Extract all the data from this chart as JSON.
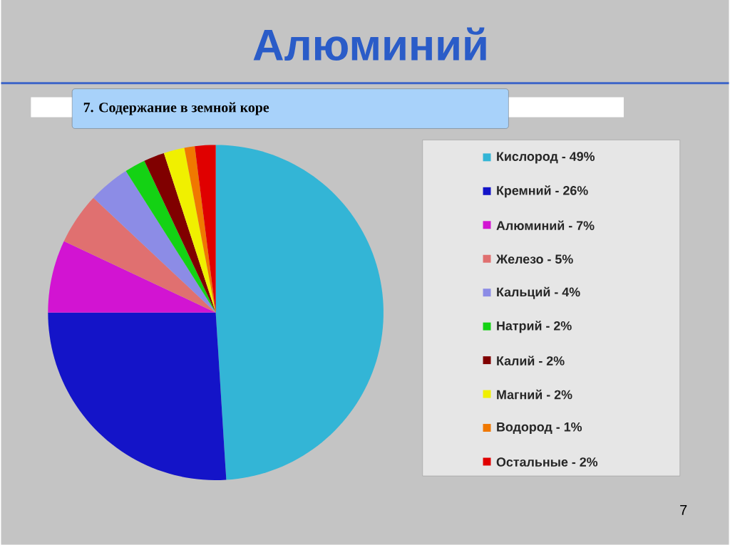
{
  "chart_data": {
    "type": "pie",
    "title": "Алюминий",
    "subtitle": "7. Содержание в земной коре",
    "categories": [
      "Кислород - 49%",
      "Кремний - 26%",
      "Алюминий - 7%",
      "Железо - 5%",
      "Кальций - 4%",
      "Натрий - 2%",
      "Калий - 2%",
      "Магний - 2%",
      "Водород - 1%",
      "Остальные - 2%"
    ],
    "values": [
      49,
      26,
      7,
      5,
      4,
      2,
      2,
      2,
      1,
      2
    ],
    "colors": [
      "#33b5d6",
      "#1414c8",
      "#d214d2",
      "#e07070",
      "#8c8ce6",
      "#14d214",
      "#800000",
      "#f0f000",
      "#f07800",
      "#e00000"
    ],
    "legend": "right",
    "annotations": [
      "7"
    ]
  }
}
